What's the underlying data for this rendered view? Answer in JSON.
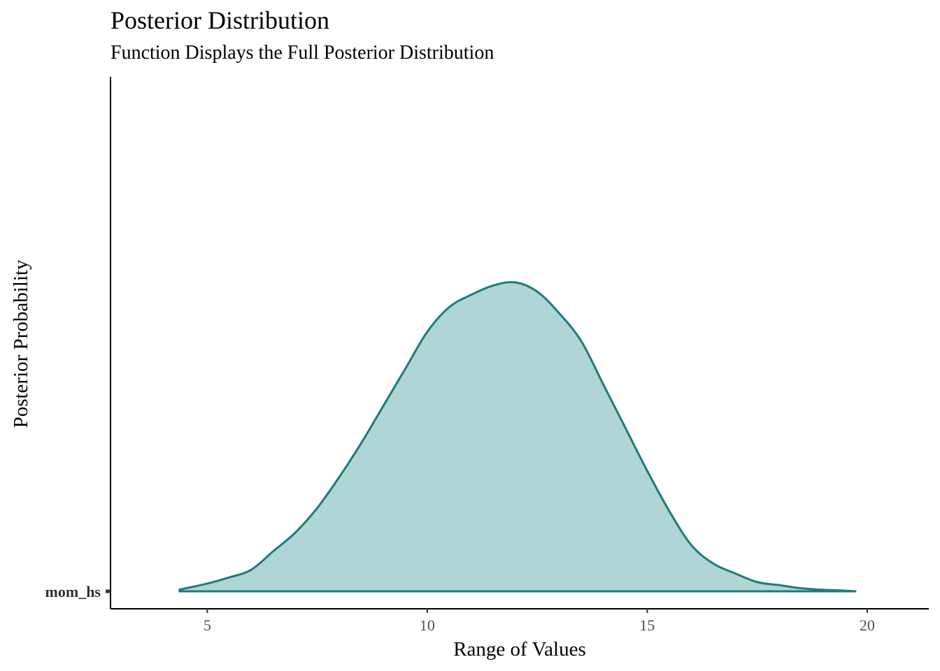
{
  "chart_data": {
    "type": "area",
    "title": "Posterior Distribution",
    "subtitle": "Function Displays the Full Posterior Distribution",
    "xlabel": "Range of Values",
    "ylabel": "Posterior Probability",
    "xlim": [
      2.8,
      21.4
    ],
    "x_ticks": [
      5,
      10,
      15,
      20
    ],
    "y_categories": [
      "mom_hs"
    ],
    "grid": false,
    "legend": "none",
    "colors": {
      "line": "#1F7A7A",
      "fill": "#AFD5D5"
    },
    "series": [
      {
        "category": "mom_hs",
        "x": [
          4.35,
          5.0,
          5.5,
          6.0,
          6.5,
          7.0,
          7.5,
          8.0,
          8.5,
          9.0,
          9.5,
          10.0,
          10.5,
          11.0,
          11.5,
          12.0,
          12.5,
          13.0,
          13.5,
          14.0,
          14.5,
          15.0,
          15.5,
          16.0,
          16.5,
          17.0,
          17.5,
          18.0,
          18.5,
          19.0,
          19.5,
          19.75
        ],
        "density": [
          0.005,
          0.025,
          0.045,
          0.07,
          0.13,
          0.19,
          0.27,
          0.37,
          0.48,
          0.6,
          0.72,
          0.84,
          0.92,
          0.96,
          0.99,
          1.0,
          0.97,
          0.9,
          0.81,
          0.67,
          0.53,
          0.39,
          0.26,
          0.15,
          0.09,
          0.058,
          0.03,
          0.02,
          0.01,
          0.005,
          0.002,
          0.0
        ]
      }
    ]
  }
}
